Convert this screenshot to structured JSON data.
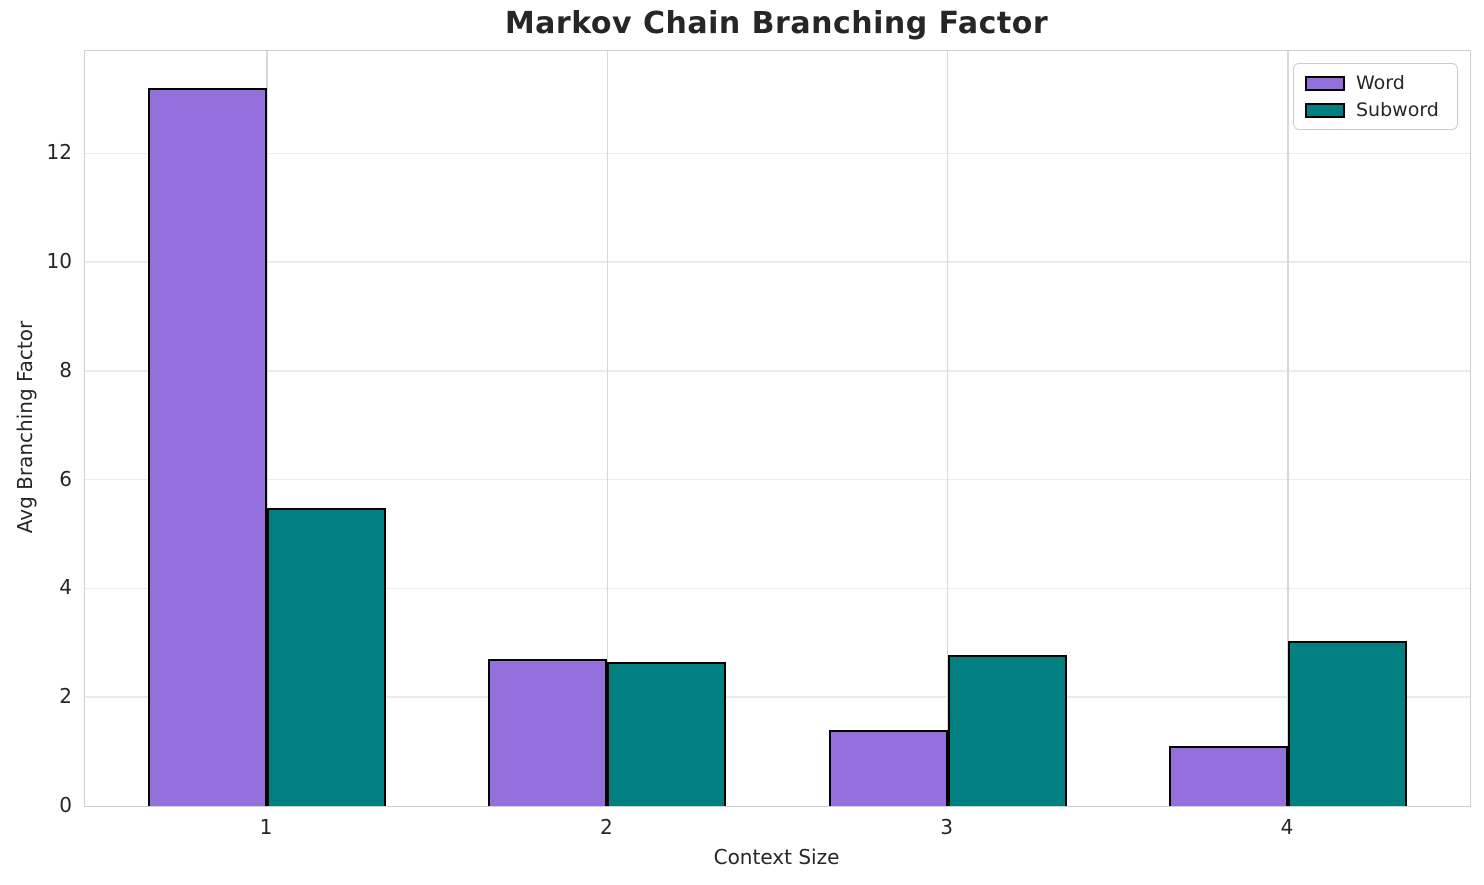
{
  "chart_data": {
    "type": "bar",
    "title": "Markov Chain Branching Factor",
    "xlabel": "Context Size",
    "ylabel": "Avg Branching Factor",
    "categories": [
      "1",
      "2",
      "3",
      "4"
    ],
    "series": [
      {
        "name": "Word",
        "color": "#9370DB",
        "values": [
          13.2,
          2.7,
          1.4,
          1.1
        ]
      },
      {
        "name": "Subword",
        "color": "#008080",
        "values": [
          5.48,
          2.65,
          2.78,
          3.04
        ]
      }
    ],
    "bar_width": 0.35,
    "xlim": [
      0.465,
      4.535
    ],
    "ylim": [
      0,
      13.88
    ],
    "yticks": [
      0,
      2,
      4,
      6,
      8,
      10,
      12
    ],
    "grid": true,
    "legend_position": "upper right",
    "legend_labels": [
      "Word",
      "Subword"
    ]
  },
  "colors": {
    "word_fill": "#9370DB",
    "subword_fill": "#008080",
    "bar_edge": "#000000",
    "text": "#262626",
    "grid_h": "#ebebeb",
    "grid_v": "#d8d8d8",
    "spine": "#cfcfcf",
    "legend_border": "#cccccc",
    "background": "#ffffff"
  }
}
